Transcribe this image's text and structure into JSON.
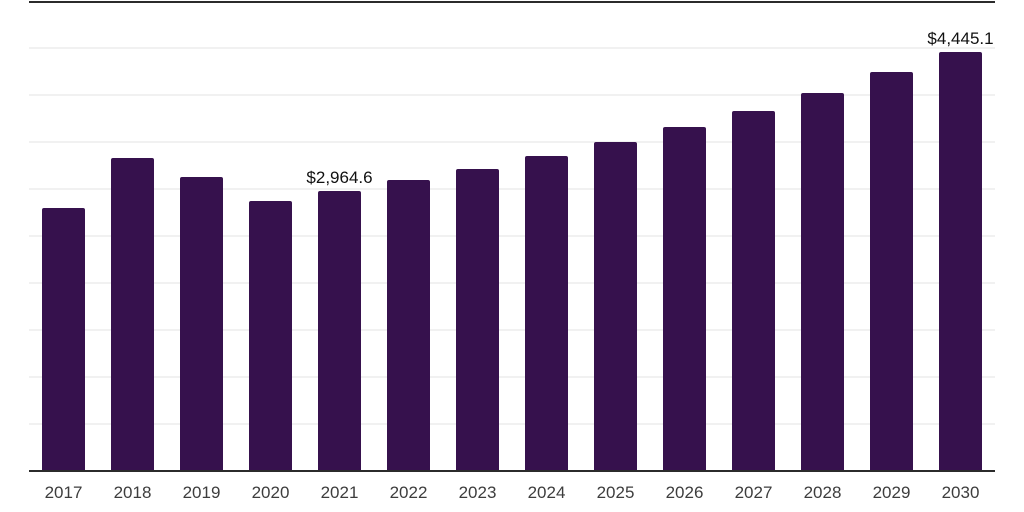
{
  "page": {
    "background_color": "#ffffff"
  },
  "chart_data": {
    "type": "bar",
    "title": "",
    "xlabel": "",
    "ylabel": "",
    "categories": [
      "2017",
      "2018",
      "2019",
      "2020",
      "2021",
      "2022",
      "2023",
      "2024",
      "2025",
      "2026",
      "2027",
      "2028",
      "2029",
      "2030"
    ],
    "values": [
      2785,
      3320,
      3120,
      2860,
      2964.6,
      3085,
      3200,
      3340,
      3490,
      3645,
      3820,
      4010,
      4235,
      4445.1
    ],
    "data_labels": {
      "2021": "$2,964.6",
      "2030": "$4,445.1"
    },
    "ylim": [
      0,
      5000
    ],
    "gridline_step": 500,
    "grid": "horizontal",
    "legend": "none",
    "y_axis_tick_labels": "hidden",
    "bar_color": "#36114d",
    "axis_line_color": "#2b2b2b",
    "top_border_color": "#2b2b2b",
    "gridline_color": "#f1f1f1",
    "tick_label_color": "#3d3d3d",
    "data_label_color": "#111111"
  }
}
